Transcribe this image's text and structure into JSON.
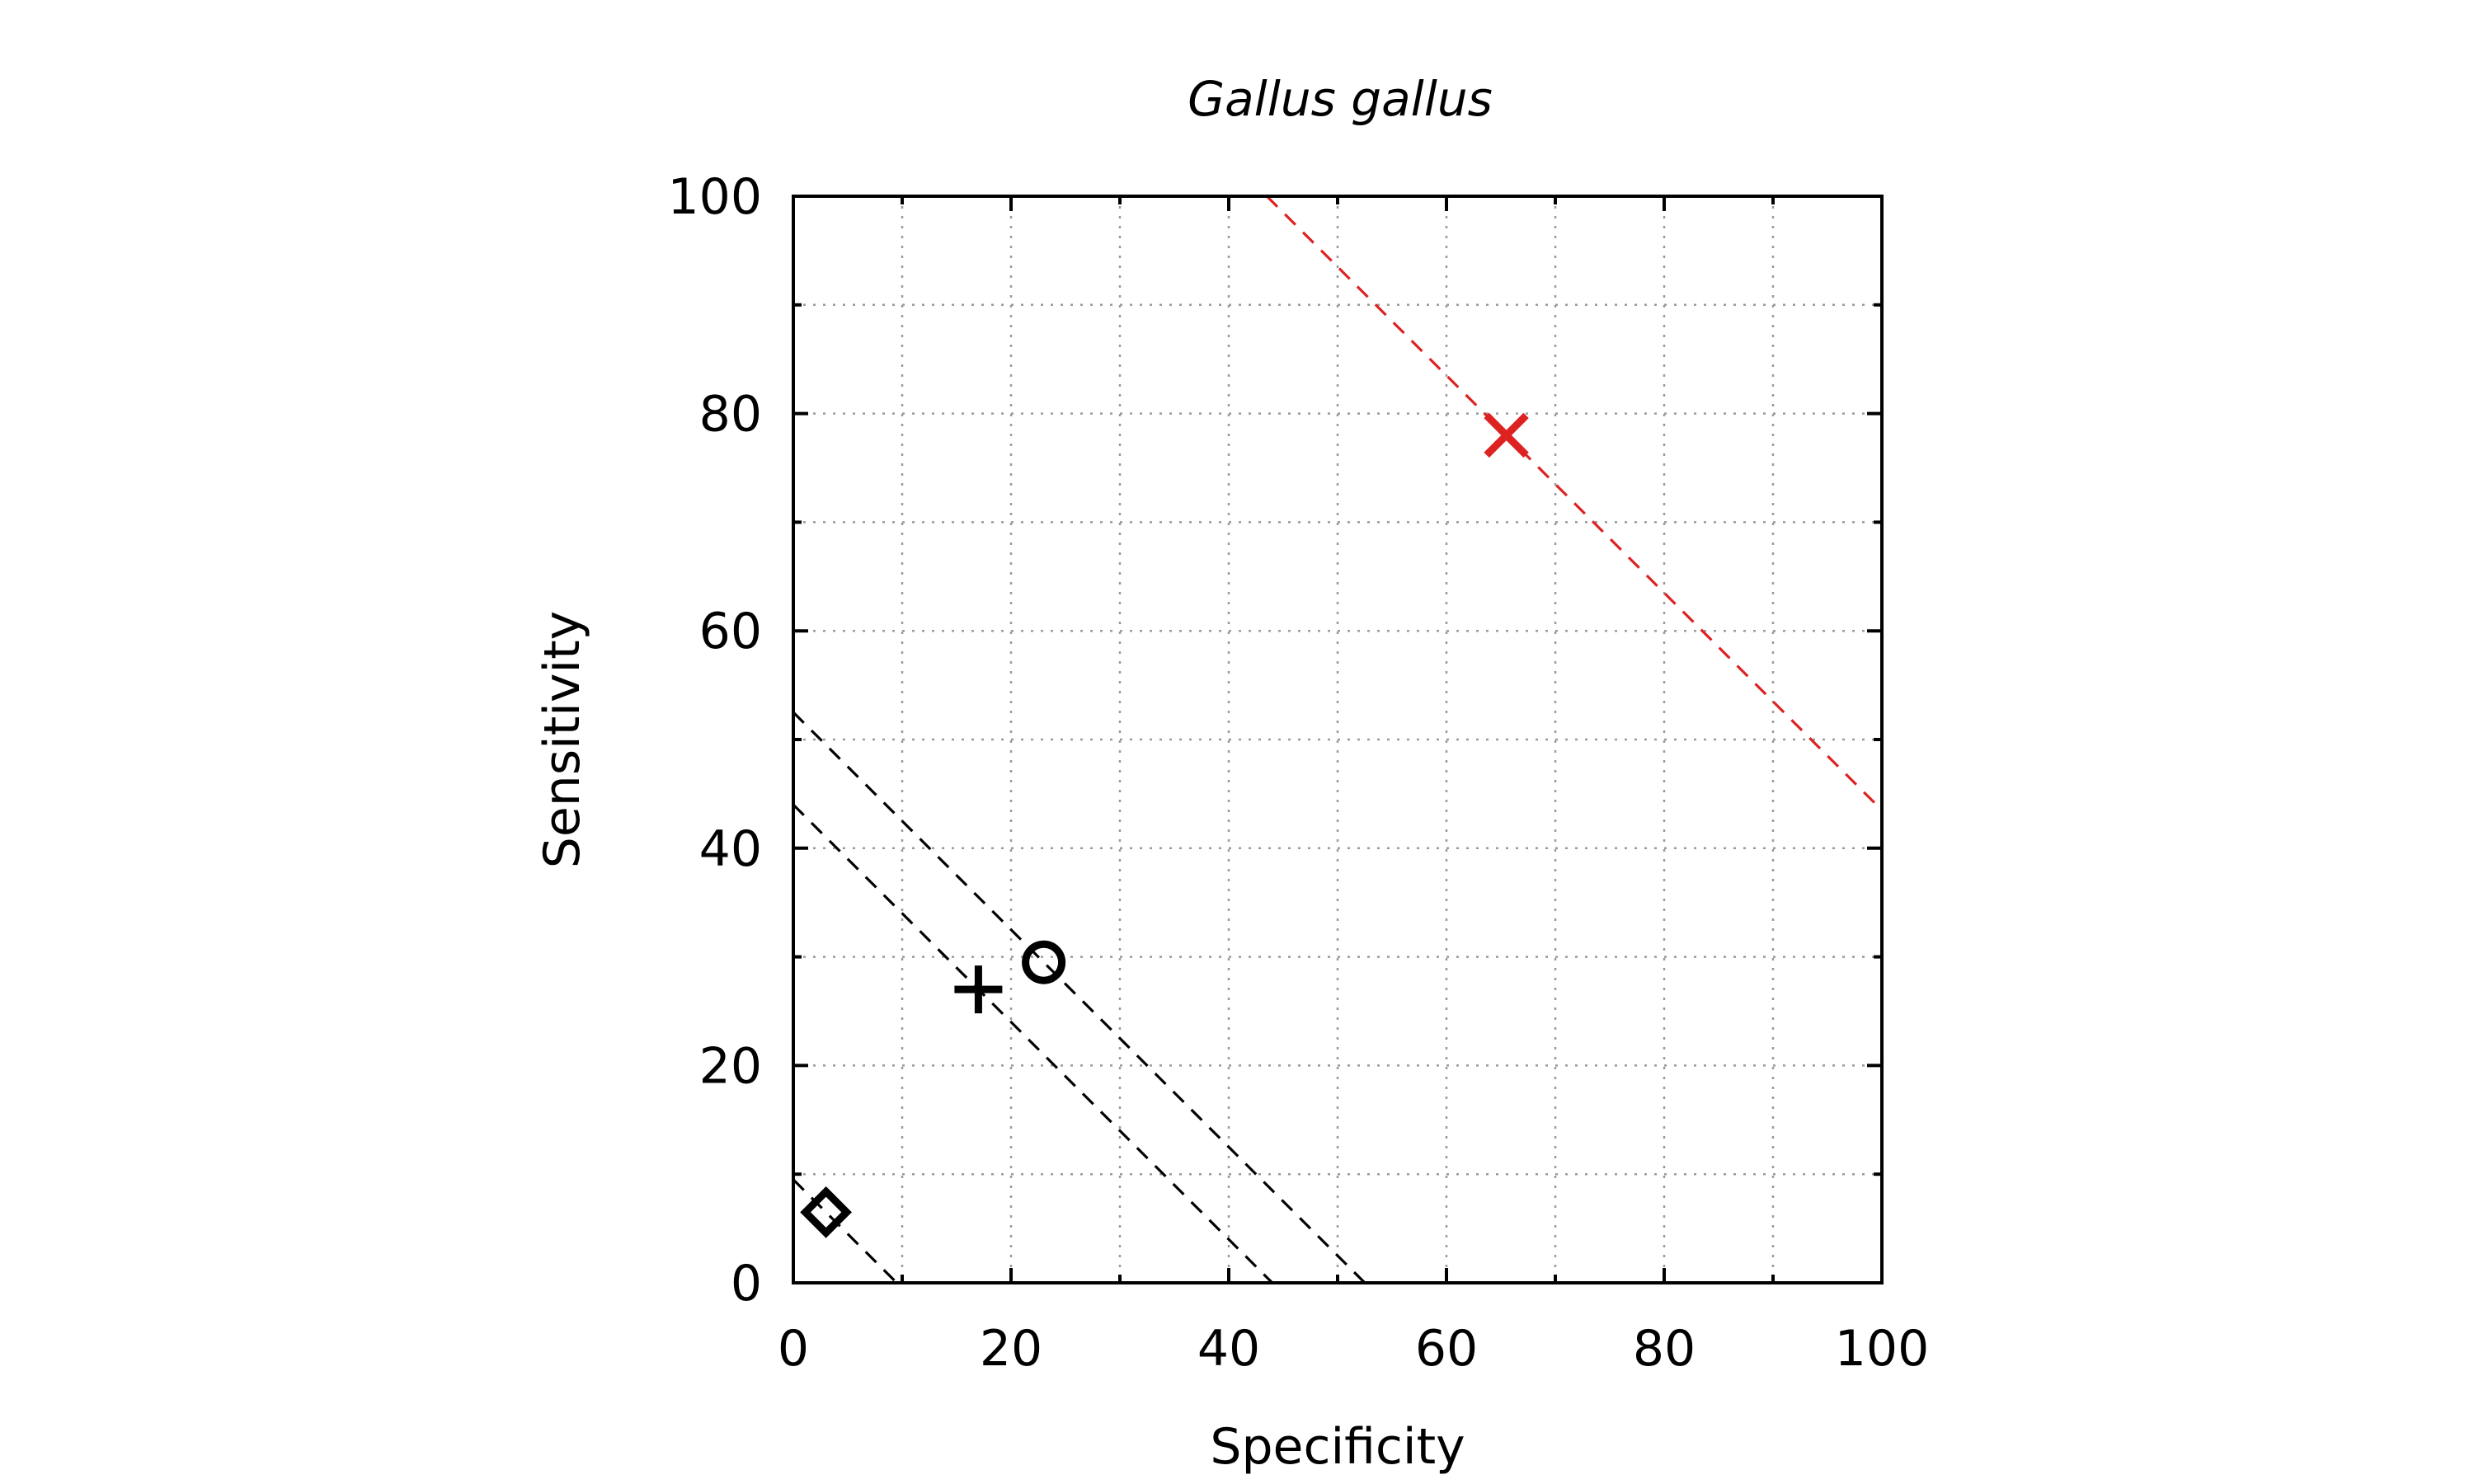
{
  "chart_data": {
    "type": "scatter",
    "title": "Gallus gallus",
    "xlabel": "Specificity",
    "ylabel": "Sensitivity",
    "xlim": [
      0,
      100
    ],
    "ylim": [
      0,
      100
    ],
    "xticks": [
      "0",
      "20",
      "40",
      "60",
      "80",
      "100"
    ],
    "yticks": [
      "0",
      "20",
      "40",
      "60",
      "80",
      "100"
    ],
    "grid": true,
    "legend": "none",
    "points": [
      {
        "marker": "x-icon",
        "color": "#dd2222",
        "x": 65.5,
        "y": 78
      },
      {
        "marker": "circle-icon",
        "color": "#000000",
        "x": 23,
        "y": 29.5
      },
      {
        "marker": "plus-icon",
        "color": "#000000",
        "x": 17,
        "y": 27
      },
      {
        "marker": "diamond-icon",
        "color": "#000000",
        "x": 3,
        "y": 6.5
      }
    ],
    "reference_lines": [
      {
        "color": "#dd2222",
        "x_plus_y": 143.5
      },
      {
        "color": "#000000",
        "x_plus_y": 52.5
      },
      {
        "color": "#000000",
        "x_plus_y": 44
      },
      {
        "color": "#000000",
        "x_plus_y": 9.5
      }
    ]
  }
}
